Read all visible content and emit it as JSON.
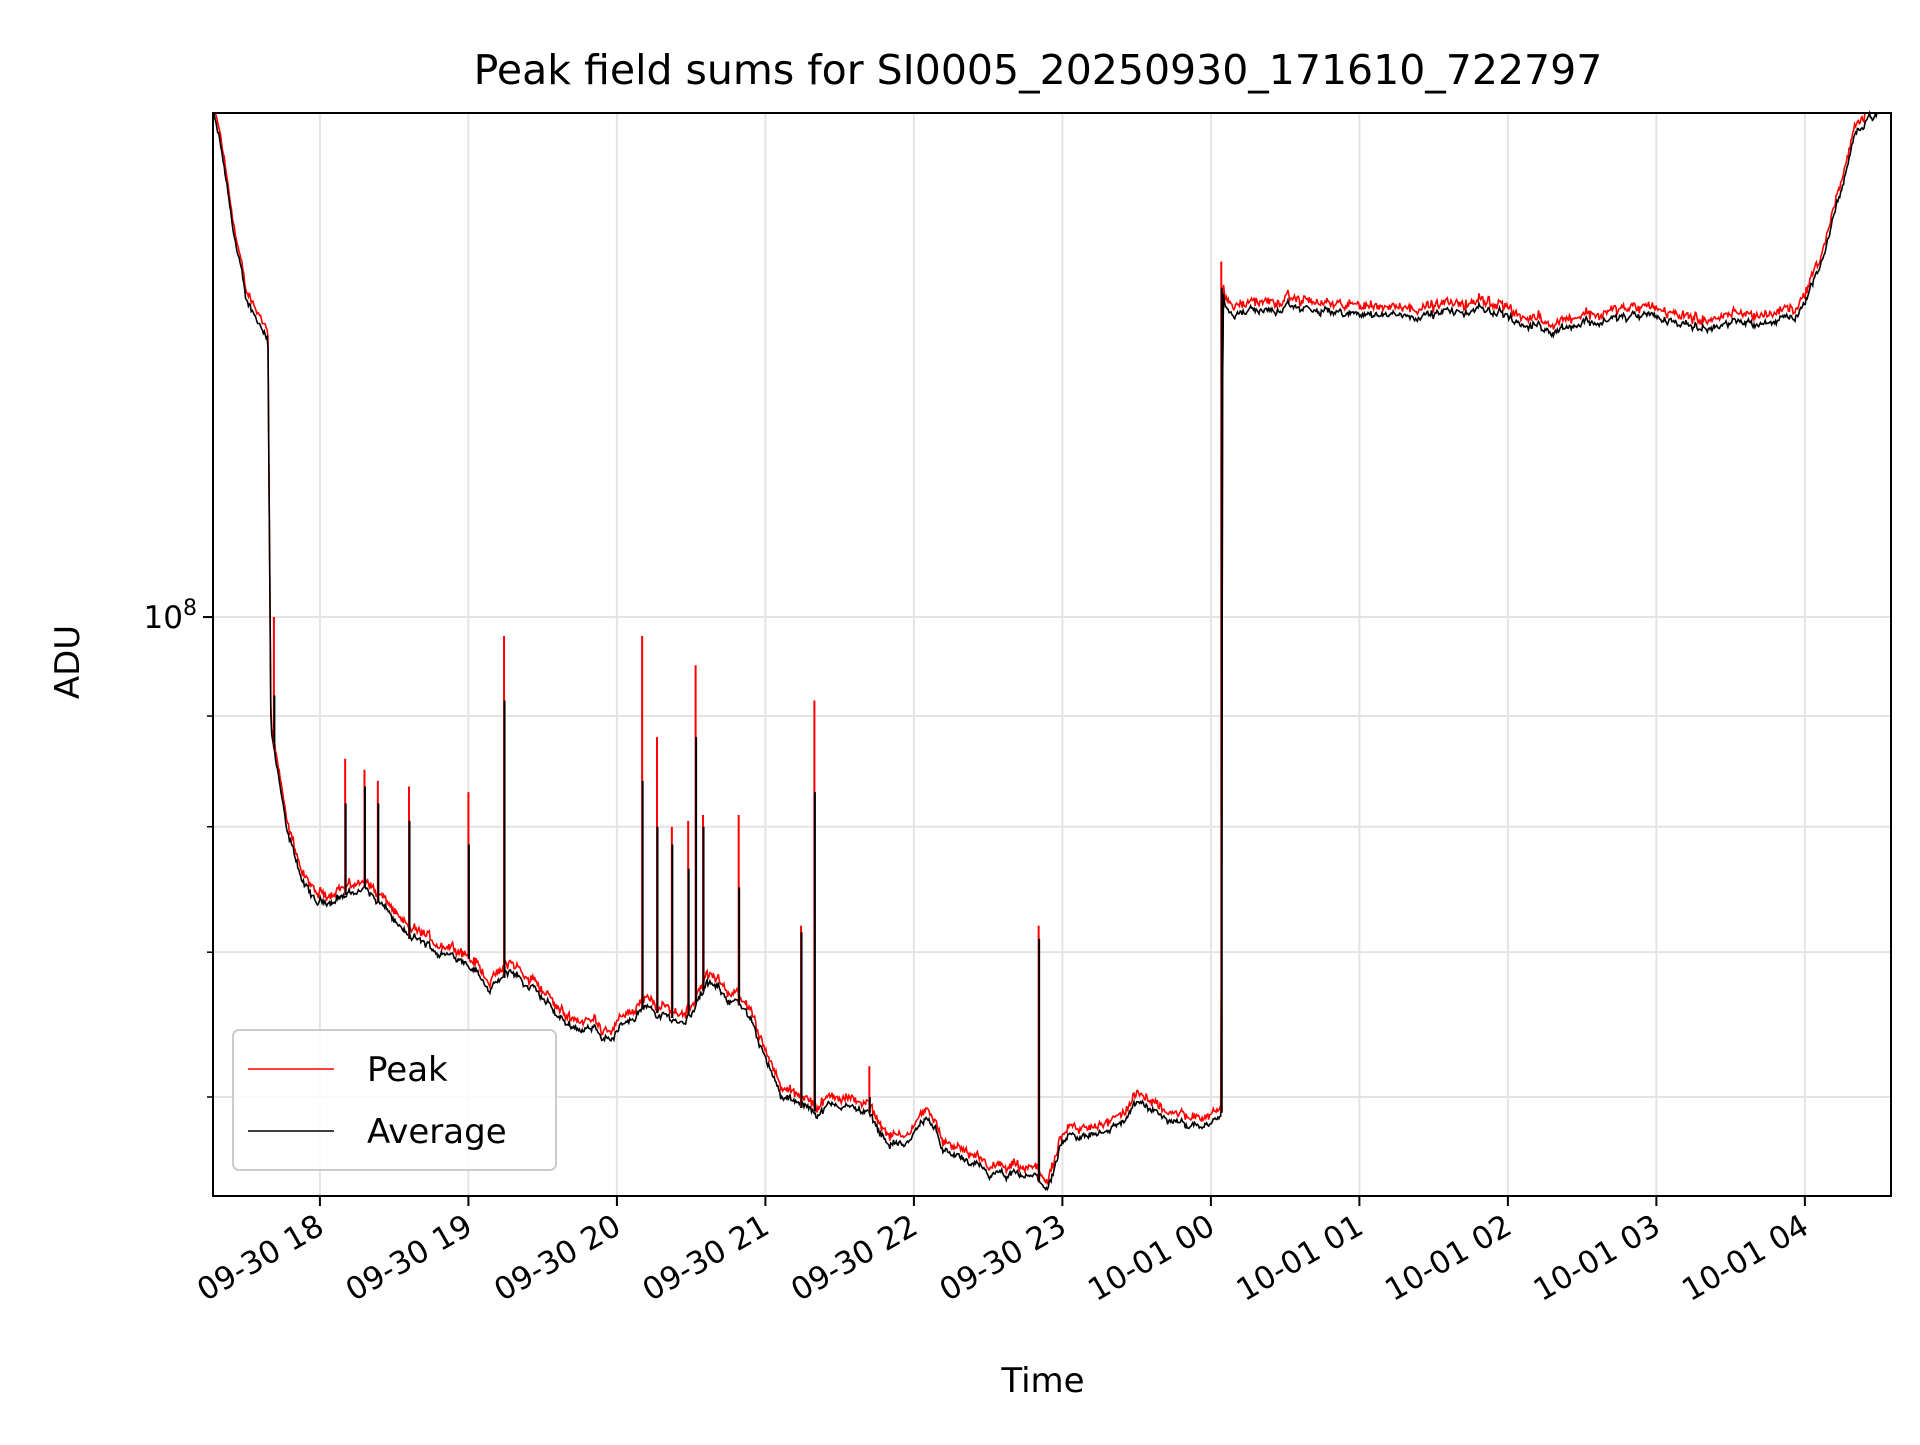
{
  "chart_data": {
    "type": "line",
    "title": "Peak field sums for SI0005_20250930_171610_722797",
    "xlabel": "Time",
    "ylabel": "ADU",
    "yscale": "log",
    "grid": true,
    "legend_position": "lower-left",
    "xlim_hours": [
      17.28,
      28.58
    ],
    "ylim": [
      54000000,
      171000000
    ],
    "x_ticks": [
      {
        "hour": 18,
        "label": "09-30 18"
      },
      {
        "hour": 19,
        "label": "09-30 19"
      },
      {
        "hour": 20,
        "label": "09-30 20"
      },
      {
        "hour": 21,
        "label": "09-30 21"
      },
      {
        "hour": 22,
        "label": "09-30 22"
      },
      {
        "hour": 23,
        "label": "09-30 23"
      },
      {
        "hour": 24,
        "label": "10-01 00"
      },
      {
        "hour": 25,
        "label": "10-01 01"
      },
      {
        "hour": 26,
        "label": "10-01 02"
      },
      {
        "hour": 27,
        "label": "10-01 03"
      },
      {
        "hour": 28,
        "label": "10-01 04"
      }
    ],
    "y_ticks_major": [
      {
        "value": 100000000,
        "base": "10",
        "exp": "8"
      }
    ],
    "y_ticks_minor": [
      60000000,
      70000000,
      80000000,
      90000000,
      200000000
    ],
    "series": [
      {
        "name": "Peak",
        "color": "#ff0000"
      },
      {
        "name": "Average",
        "color": "#000000"
      }
    ],
    "baseline": [
      [
        17.28,
        171000000
      ],
      [
        17.33,
        165000000
      ],
      [
        17.4,
        153000000
      ],
      [
        17.5,
        140000000
      ],
      [
        17.65,
        135000000
      ],
      [
        17.67,
        89000000
      ],
      [
        17.7,
        86000000
      ],
      [
        17.78,
        79000000
      ],
      [
        17.9,
        75000000
      ],
      [
        17.97,
        73500000
      ],
      [
        18.05,
        74000000
      ],
      [
        18.2,
        74500000
      ],
      [
        18.3,
        75000000
      ],
      [
        18.45,
        73000000
      ],
      [
        18.6,
        71000000
      ],
      [
        18.8,
        70000000
      ],
      [
        19.0,
        69500000
      ],
      [
        19.15,
        67500000
      ],
      [
        19.3,
        68500000
      ],
      [
        19.5,
        66500000
      ],
      [
        19.65,
        65000000
      ],
      [
        19.8,
        64500000
      ],
      [
        19.97,
        64000000
      ],
      [
        20.15,
        66000000
      ],
      [
        20.3,
        65500000
      ],
      [
        20.45,
        65000000
      ],
      [
        20.6,
        67500000
      ],
      [
        20.8,
        66500000
      ],
      [
        21.0,
        63000000
      ],
      [
        21.1,
        60000000
      ],
      [
        21.3,
        59000000
      ],
      [
        21.5,
        59500000
      ],
      [
        21.7,
        59000000
      ],
      [
        21.8,
        57500000
      ],
      [
        21.95,
        57000000
      ],
      [
        22.08,
        58500000
      ],
      [
        22.2,
        57000000
      ],
      [
        22.4,
        55500000
      ],
      [
        22.6,
        55000000
      ],
      [
        22.8,
        55000000
      ],
      [
        22.9,
        54500000
      ],
      [
        23.0,
        57000000
      ],
      [
        23.2,
        57500000
      ],
      [
        23.4,
        58500000
      ],
      [
        23.5,
        59500000
      ],
      [
        23.65,
        58800000
      ],
      [
        23.8,
        58300000
      ],
      [
        23.95,
        58500000
      ],
      [
        24.07,
        59000000
      ],
      [
        24.08,
        142500000
      ],
      [
        24.1,
        139000000
      ],
      [
        24.3,
        138500000
      ],
      [
        24.6,
        138500000
      ],
      [
        25.0,
        138000000
      ],
      [
        25.5,
        138000000
      ],
      [
        25.95,
        138500000
      ],
      [
        26.05,
        137000000
      ],
      [
        26.3,
        136000000
      ],
      [
        26.5,
        137000000
      ],
      [
        26.8,
        137500000
      ],
      [
        27.0,
        137000000
      ],
      [
        27.2,
        137000000
      ],
      [
        27.5,
        136500000
      ],
      [
        27.7,
        137000000
      ],
      [
        27.95,
        138000000
      ],
      [
        28.1,
        145000000
      ],
      [
        28.25,
        158000000
      ],
      [
        28.35,
        168000000
      ],
      [
        28.42,
        171000000
      ],
      [
        28.58,
        171000000
      ]
    ],
    "spikes": [
      {
        "hour": 17.69,
        "peak": 100000000,
        "average": 92000000
      },
      {
        "hour": 18.17,
        "peak": 86000000,
        "average": 82000000
      },
      {
        "hour": 18.3,
        "peak": 85000000,
        "average": 83500000
      },
      {
        "hour": 18.39,
        "peak": 84000000,
        "average": 82000000
      },
      {
        "hour": 18.6,
        "peak": 83500000,
        "average": 80500000
      },
      {
        "hour": 19.0,
        "peak": 83000000,
        "average": 78500000
      },
      {
        "hour": 19.24,
        "peak": 98000000,
        "average": 91500000
      },
      {
        "hour": 20.17,
        "peak": 98000000,
        "average": 84000000
      },
      {
        "hour": 20.27,
        "peak": 88000000,
        "average": 80000000
      },
      {
        "hour": 20.37,
        "peak": 80000000,
        "average": 78500000
      },
      {
        "hour": 20.48,
        "peak": 80500000,
        "average": 76500000
      },
      {
        "hour": 20.53,
        "peak": 95000000,
        "average": 88000000
      },
      {
        "hour": 20.58,
        "peak": 81000000,
        "average": 80000000
      },
      {
        "hour": 20.82,
        "peak": 81000000,
        "average": 75000000
      },
      {
        "hour": 21.24,
        "peak": 72000000,
        "average": 71500000
      },
      {
        "hour": 21.33,
        "peak": 91500000,
        "average": 83000000
      },
      {
        "hour": 21.7,
        "peak": 62000000,
        "average": 60000000
      },
      {
        "hour": 22.84,
        "peak": 72000000,
        "average": 71000000
      },
      {
        "hour": 24.07,
        "peak": 146000000,
        "average": 142000000
      }
    ]
  }
}
